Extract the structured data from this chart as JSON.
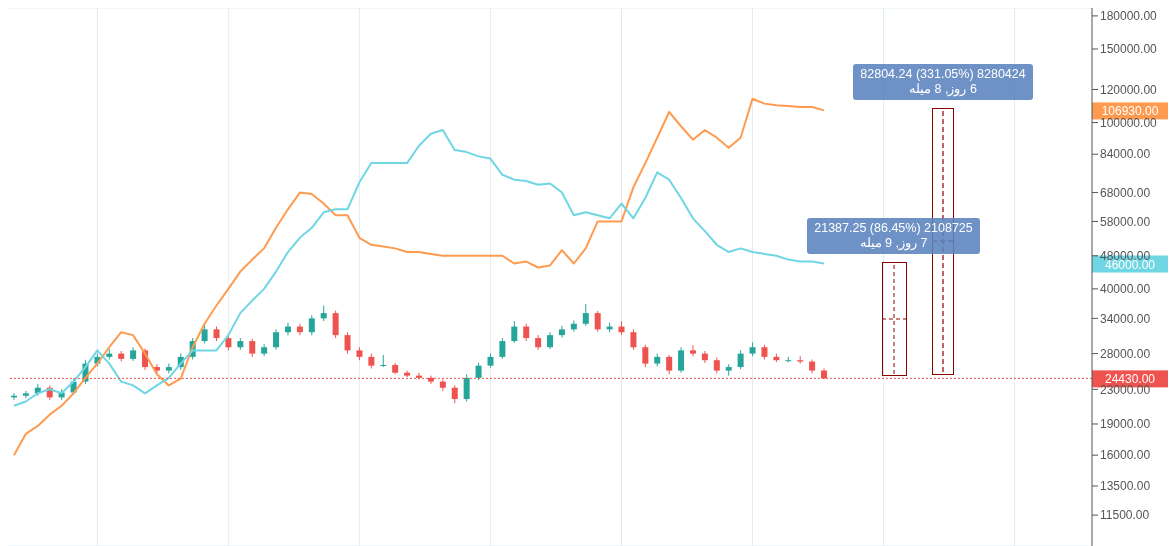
{
  "chart_data": {
    "type": "candlestick",
    "categories": [
      null,
      null,
      null,
      null,
      null,
      null,
      null,
      null,
      null,
      null,
      null,
      null,
      null,
      null,
      null,
      null,
      null,
      null,
      null,
      null,
      null,
      null,
      null,
      null,
      null,
      null,
      null,
      null,
      null,
      null,
      null,
      null,
      null,
      null,
      null,
      null,
      null,
      null,
      null,
      null,
      null,
      null,
      null,
      null,
      null,
      null,
      null,
      null,
      null,
      null,
      null,
      null,
      null,
      null,
      null,
      null,
      null,
      null,
      null,
      null,
      null,
      null,
      null,
      null,
      null,
      null,
      null,
      null,
      null,
      null,
      null,
      null,
      null,
      null,
      null,
      null,
      null,
      null,
      null,
      null,
      null,
      null,
      null,
      null,
      null,
      null,
      null,
      null,
      null,
      null,
      null
    ],
    "ohlc": [
      [
        22000,
        22500,
        21700,
        22200
      ],
      [
        22200,
        22800,
        21900,
        22500
      ],
      [
        22500,
        23700,
        22200,
        23200
      ],
      [
        23200,
        23500,
        21700,
        22000
      ],
      [
        22000,
        23000,
        21700,
        22600
      ],
      [
        22600,
        24400,
        22300,
        24000
      ],
      [
        24000,
        27000,
        23700,
        26500
      ],
      [
        26500,
        28000,
        26100,
        27500
      ],
      [
        27500,
        28700,
        27100,
        28000
      ],
      [
        28000,
        28400,
        26800,
        27200
      ],
      [
        27200,
        29000,
        26900,
        28500
      ],
      [
        28500,
        28800,
        25600,
        26000
      ],
      [
        26000,
        26400,
        25100,
        25500
      ],
      [
        25500,
        26500,
        25100,
        26000
      ],
      [
        26000,
        28000,
        25600,
        27500
      ],
      [
        27500,
        30500,
        27100,
        30000
      ],
      [
        30000,
        32800,
        29600,
        32000
      ],
      [
        32000,
        32500,
        30000,
        30500
      ],
      [
        30500,
        31000,
        28500,
        29000
      ],
      [
        29000,
        30500,
        28600,
        30000
      ],
      [
        30000,
        30400,
        27500,
        28000
      ],
      [
        28000,
        29500,
        27600,
        29000
      ],
      [
        29000,
        32000,
        28600,
        31500
      ],
      [
        31500,
        33200,
        31000,
        32500
      ],
      [
        32500,
        33000,
        31000,
        31500
      ],
      [
        31500,
        34600,
        31000,
        34000
      ],
      [
        34000,
        36500,
        33500,
        35000
      ],
      [
        35000,
        35500,
        30500,
        31000
      ],
      [
        31000,
        31500,
        28000,
        28500
      ],
      [
        28500,
        29000,
        27000,
        27500
      ],
      [
        27500,
        28000,
        25800,
        26200
      ],
      [
        26200,
        27800,
        26000,
        26300
      ],
      [
        26300,
        26600,
        25000,
        25200
      ],
      [
        25200,
        25500,
        24600,
        24800
      ],
      [
        24800,
        25200,
        24300,
        24500
      ],
      [
        24500,
        24800,
        23700,
        24000
      ],
      [
        24000,
        24300,
        22800,
        23200
      ],
      [
        23200,
        23500,
        21300,
        21800
      ],
      [
        21800,
        25000,
        21500,
        24500
      ],
      [
        24500,
        26600,
        24200,
        26200
      ],
      [
        26200,
        28000,
        25900,
        27500
      ],
      [
        27500,
        30500,
        27200,
        30000
      ],
      [
        30000,
        33500,
        29700,
        32500
      ],
      [
        32500,
        33000,
        30000,
        30500
      ],
      [
        30500,
        31000,
        28600,
        29000
      ],
      [
        29000,
        31500,
        28700,
        31000
      ],
      [
        31000,
        32600,
        30600,
        32000
      ],
      [
        32000,
        33600,
        31600,
        33000
      ],
      [
        33000,
        36800,
        32600,
        35000
      ],
      [
        35000,
        35400,
        31600,
        32000
      ],
      [
        32000,
        33200,
        31500,
        32500
      ],
      [
        32500,
        33500,
        31000,
        31500
      ],
      [
        31500,
        32000,
        28600,
        29000
      ],
      [
        29000,
        29400,
        26000,
        26500
      ],
      [
        26500,
        28000,
        26100,
        27500
      ],
      [
        27500,
        27800,
        25000,
        25500
      ],
      [
        25500,
        29000,
        25200,
        28500
      ],
      [
        28500,
        29300,
        27600,
        28000
      ],
      [
        28000,
        28400,
        26600,
        27000
      ],
      [
        27000,
        27400,
        25100,
        25500
      ],
      [
        25500,
        26400,
        24800,
        26000
      ],
      [
        26000,
        28500,
        25700,
        28000
      ],
      [
        28000,
        29800,
        27600,
        29000
      ],
      [
        29000,
        29400,
        27100,
        27500
      ],
      [
        27500,
        28000,
        26700,
        27000
      ],
      [
        27000,
        27500,
        26700,
        27000
      ],
      [
        27000,
        27600,
        26500,
        26800
      ],
      [
        26800,
        27100,
        25100,
        25500
      ],
      [
        25500,
        25800,
        24300,
        24430
      ],
      null,
      null,
      null,
      null,
      null,
      null,
      null,
      null,
      null,
      null,
      null,
      null,
      null,
      null,
      null,
      null,
      null,
      null,
      null,
      null,
      null,
      null
    ],
    "series": [
      {
        "type": "line",
        "color": "#ff9b50",
        "values": [
          16000,
          18000,
          18800,
          20000,
          21000,
          22500,
          24500,
          26500,
          29000,
          31500,
          31000,
          28000,
          25000,
          23500,
          24400,
          29000,
          33000,
          36500,
          40000,
          44000,
          47000,
          50000,
          56000,
          62000,
          68000,
          67500,
          64000,
          60000,
          60000,
          53000,
          51000,
          50500,
          50000,
          49000,
          49000,
          48500,
          48000,
          48000,
          48000,
          48000,
          48000,
          48000,
          46000,
          46500,
          45000,
          45500,
          49500,
          46000,
          50000,
          58000,
          58000,
          58000,
          70000,
          80000,
          92000,
          106000,
          98000,
          91000,
          96000,
          92000,
          87000,
          92000,
          114000,
          111000,
          110000,
          109500,
          109000,
          109000,
          106930,
          null,
          null,
          null,
          null,
          null,
          null,
          null,
          null,
          null,
          null,
          null,
          null,
          null,
          null,
          null,
          null,
          null,
          null,
          null,
          null,
          null,
          null
        ]
      },
      {
        "type": "line",
        "color": "#6fd6e4",
        "values": [
          21000,
          21500,
          22500,
          23000,
          22500,
          24000,
          26000,
          28500,
          26500,
          24000,
          23500,
          22500,
          23500,
          24500,
          26500,
          28500,
          28500,
          28500,
          31000,
          35000,
          37500,
          40000,
          44000,
          49000,
          53000,
          56000,
          61000,
          62000,
          62000,
          72000,
          80000,
          80000,
          80000,
          80000,
          88000,
          94000,
          96000,
          86000,
          85000,
          83000,
          82000,
          75000,
          73000,
          72500,
          71000,
          71500,
          68000,
          60000,
          61000,
          60000,
          59000,
          64000,
          59000,
          66000,
          76000,
          73000,
          66000,
          59000,
          55000,
          51000,
          49000,
          50000,
          49000,
          48500,
          48000,
          47000,
          46500,
          46500,
          46000,
          null,
          null,
          null,
          null,
          null,
          null,
          null,
          null,
          null,
          null,
          null,
          null,
          null,
          null,
          null,
          null,
          null,
          null,
          null,
          null,
          null,
          null
        ]
      }
    ],
    "ylim": [
      9700,
      188000
    ],
    "yticks": [
      {
        "value": 11500,
        "label": "11500.00"
      },
      {
        "value": 13500,
        "label": "13500.00"
      },
      {
        "value": 16000,
        "label": "16000.00"
      },
      {
        "value": 19000,
        "label": "19000.00"
      },
      {
        "value": 23000,
        "label": "23000.00"
      },
      {
        "value": 28000,
        "label": "28000.00"
      },
      {
        "value": 34000,
        "label": "34000.00"
      },
      {
        "value": 40000,
        "label": "40000.00"
      },
      {
        "value": 48000,
        "label": "48000.00"
      },
      {
        "value": 58000,
        "label": "58000.00"
      },
      {
        "value": 68000,
        "label": "68000.00"
      },
      {
        "value": 84000,
        "label": "84000.00"
      },
      {
        "value": 100000,
        "label": "100000.00"
      },
      {
        "value": 120000,
        "label": "120000.00"
      },
      {
        "value": 150000,
        "label": "150000.00"
      },
      {
        "value": 180000,
        "label": "180000.00"
      }
    ],
    "log": true,
    "grid": true,
    "tick_labels": "y",
    "ref_lines": [
      {
        "axis": "y",
        "value": 24430,
        "label": "24430.00",
        "color": "#ef5350",
        "line_style": "dotted"
      }
    ],
    "annotations": [
      "82804.24 (331.05%) 8280424",
      "6 روز, 8 میله",
      "21387.25 (86.45%) 2108725",
      "7 روز, 9 میله",
      "106930.00",
      "46000.00"
    ]
  }
}
